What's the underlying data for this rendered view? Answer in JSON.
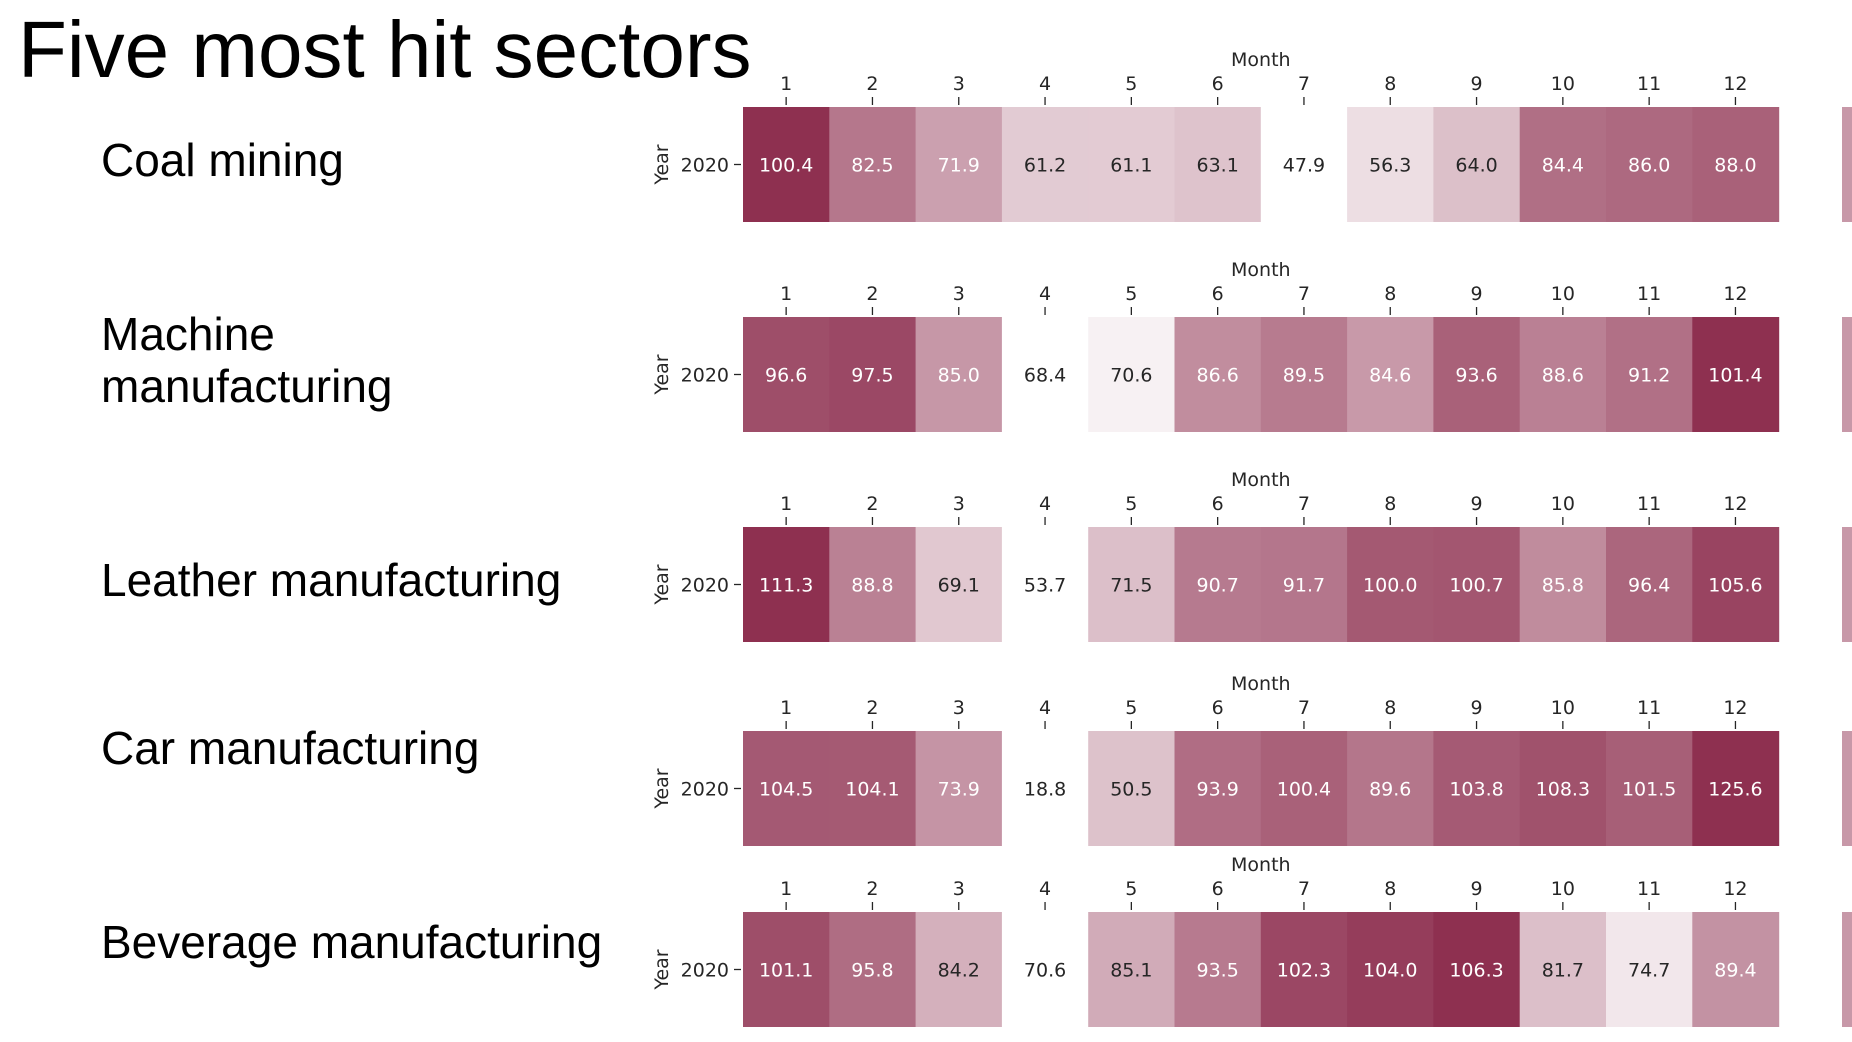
{
  "title": "Five most hit sectors",
  "chart_data": {
    "type": "heatmap",
    "xlabel": "Month",
    "ylabel": "Year",
    "row_label": "2020",
    "months": [
      "1",
      "2",
      "3",
      "4",
      "5",
      "6",
      "7",
      "8",
      "9",
      "10",
      "11",
      "12"
    ],
    "colors": {
      "low": "#ffffff",
      "high": "#8e3050",
      "text_dark": "#262626",
      "text_light": "#ffffff"
    },
    "panels": [
      {
        "sector": "Coal mining",
        "values": [
          100.4,
          82.5,
          71.9,
          61.2,
          61.1,
          63.1,
          47.9,
          56.3,
          64.0,
          84.4,
          86.0,
          88.0
        ]
      },
      {
        "sector": "Machine manufacturing",
        "values": [
          96.6,
          97.5,
          85.0,
          68.4,
          70.6,
          86.6,
          89.5,
          84.6,
          93.6,
          88.6,
          91.2,
          101.4
        ]
      },
      {
        "sector": "Leather manufacturing",
        "values": [
          111.3,
          88.8,
          69.1,
          53.7,
          71.5,
          90.7,
          91.7,
          100.0,
          100.7,
          85.8,
          96.4,
          105.6
        ]
      },
      {
        "sector": "Car manufacturing",
        "values": [
          104.5,
          104.1,
          73.9,
          18.8,
          50.5,
          93.9,
          100.4,
          89.6,
          103.8,
          108.3,
          101.5,
          125.6
        ]
      },
      {
        "sector": "Beverage manufacturing",
        "values": [
          101.1,
          95.8,
          84.2,
          70.6,
          85.1,
          93.5,
          102.3,
          104.0,
          106.3,
          81.7,
          74.7,
          89.4
        ]
      }
    ]
  }
}
